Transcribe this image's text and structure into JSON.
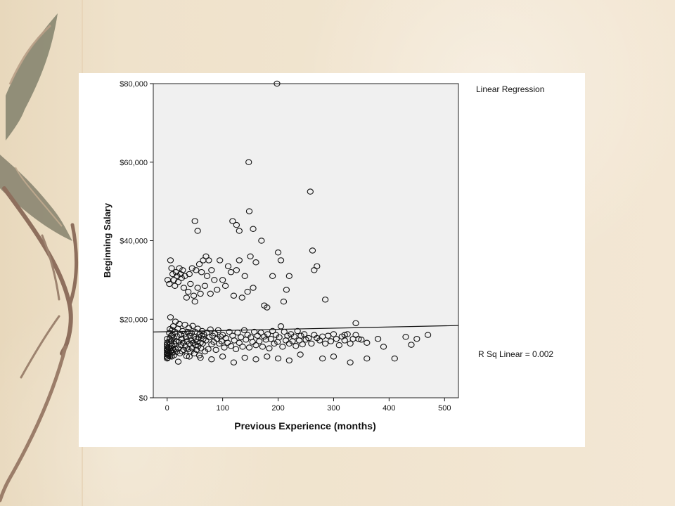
{
  "chart_data": {
    "type": "scatter",
    "title": "Linear Regression",
    "xlabel": "Previous Experience (months)",
    "ylabel": "Beginning Salary",
    "xlim": [
      -25,
      525
    ],
    "ylim": [
      0,
      80000
    ],
    "x_ticks": [
      0,
      100,
      200,
      300,
      400,
      500
    ],
    "y_ticks": [
      {
        "value": 0,
        "label": "$0"
      },
      {
        "value": 20000,
        "label": "$20,000"
      },
      {
        "value": 40000,
        "label": "$40,000"
      },
      {
        "value": 60000,
        "label": "$60,000"
      },
      {
        "value": 80000,
        "label": "$80,000"
      }
    ],
    "regression_line": {
      "label": "R Sq Linear = 0.002",
      "x": [
        -25,
        525
      ],
      "y": [
        16750,
        18400
      ]
    },
    "series": [
      {
        "points": [
          [
            0,
            10000
          ],
          [
            0,
            10500
          ],
          [
            0,
            11000
          ],
          [
            0,
            11500
          ],
          [
            0,
            12000
          ],
          [
            0,
            12500
          ],
          [
            0,
            13000
          ],
          [
            0,
            13500
          ],
          [
            0,
            14000
          ],
          [
            0,
            15000
          ],
          [
            1,
            10200
          ],
          [
            1,
            11200
          ],
          [
            1,
            12200
          ],
          [
            2,
            10800
          ],
          [
            2,
            11800
          ],
          [
            2,
            12800
          ],
          [
            3,
            11300
          ],
          [
            3,
            14300
          ],
          [
            4,
            12600
          ],
          [
            4,
            16500
          ],
          [
            5,
            10600
          ],
          [
            5,
            15000
          ],
          [
            5,
            17500
          ],
          [
            6,
            11800
          ],
          [
            6,
            13800
          ],
          [
            6,
            20500
          ],
          [
            7,
            12600
          ],
          [
            7,
            15800
          ],
          [
            8,
            10500
          ],
          [
            8,
            14600
          ],
          [
            9,
            13200
          ],
          [
            9,
            17200
          ],
          [
            10,
            11500
          ],
          [
            10,
            16000
          ],
          [
            11,
            12200
          ],
          [
            11,
            18200
          ],
          [
            12,
            10800
          ],
          [
            12,
            15300
          ],
          [
            13,
            13800
          ],
          [
            14,
            16800
          ],
          [
            15,
            12400
          ],
          [
            15,
            19400
          ],
          [
            16,
            14400
          ],
          [
            17,
            11700
          ],
          [
            18,
            15600
          ],
          [
            19,
            17600
          ],
          [
            20,
            12600
          ],
          [
            21,
            14200
          ],
          [
            22,
            18800
          ],
          [
            23,
            11300
          ],
          [
            24,
            16000
          ],
          [
            25,
            13400
          ],
          [
            26,
            15000
          ],
          [
            27,
            11800
          ],
          [
            28,
            17000
          ],
          [
            29,
            14000
          ],
          [
            30,
            12200
          ],
          [
            31,
            16200
          ],
          [
            32,
            18600
          ],
          [
            33,
            13200
          ],
          [
            34,
            15400
          ],
          [
            35,
            10600
          ],
          [
            36,
            14400
          ],
          [
            37,
            16800
          ],
          [
            38,
            12400
          ],
          [
            39,
            17800
          ],
          [
            40,
            13800
          ],
          [
            41,
            15800
          ],
          [
            42,
            11800
          ],
          [
            43,
            14600
          ],
          [
            44,
            16400
          ],
          [
            45,
            12600
          ],
          [
            46,
            18300
          ],
          [
            47,
            14000
          ],
          [
            48,
            15600
          ],
          [
            49,
            11300
          ],
          [
            50,
            16800
          ],
          [
            51,
            13400
          ],
          [
            52,
            15000
          ],
          [
            53,
            12200
          ],
          [
            54,
            14200
          ],
          [
            55,
            17600
          ],
          [
            56,
            13200
          ],
          [
            57,
            15400
          ],
          [
            58,
            10800
          ],
          [
            59,
            16200
          ],
          [
            60,
            14000
          ],
          [
            61,
            12600
          ],
          [
            62,
            15800
          ],
          [
            63,
            17000
          ],
          [
            64,
            13800
          ],
          [
            65,
            15000
          ],
          [
            66,
            16200
          ],
          [
            68,
            11800
          ],
          [
            70,
            14600
          ],
          [
            72,
            16600
          ],
          [
            74,
            12400
          ],
          [
            76,
            15400
          ],
          [
            78,
            17400
          ],
          [
            80,
            13600
          ],
          [
            82,
            15800
          ],
          [
            84,
            14200
          ],
          [
            86,
            16400
          ],
          [
            88,
            12200
          ],
          [
            90,
            15000
          ],
          [
            92,
            17200
          ],
          [
            94,
            13800
          ],
          [
            96,
            15600
          ],
          [
            98,
            14400
          ],
          [
            100,
            16000
          ],
          [
            103,
            12800
          ],
          [
            106,
            15200
          ],
          [
            109,
            14000
          ],
          [
            112,
            16800
          ],
          [
            115,
            13200
          ],
          [
            118,
            15800
          ],
          [
            121,
            14600
          ],
          [
            124,
            12400
          ],
          [
            127,
            16600
          ],
          [
            130,
            14000
          ],
          [
            133,
            15400
          ],
          [
            136,
            13000
          ],
          [
            139,
            17200
          ],
          [
            142,
            14800
          ],
          [
            145,
            16000
          ],
          [
            148,
            12800
          ],
          [
            151,
            15400
          ],
          [
            154,
            14200
          ],
          [
            157,
            16800
          ],
          [
            160,
            13400
          ],
          [
            163,
            15800
          ],
          [
            166,
            14400
          ],
          [
            169,
            16600
          ],
          [
            172,
            13000
          ],
          [
            175,
            15600
          ],
          [
            178,
            14800
          ],
          [
            181,
            16200
          ],
          [
            184,
            12600
          ],
          [
            187,
            15000
          ],
          [
            190,
            17000
          ],
          [
            193,
            13800
          ],
          [
            196,
            16000
          ],
          [
            199,
            14200
          ],
          [
            202,
            15400
          ],
          [
            205,
            18200
          ],
          [
            208,
            13000
          ],
          [
            211,
            16800
          ],
          [
            214,
            14600
          ],
          [
            217,
            15800
          ],
          [
            220,
            13800
          ],
          [
            223,
            16200
          ],
          [
            226,
            14400
          ],
          [
            229,
            15600
          ],
          [
            232,
            13200
          ],
          [
            235,
            17000
          ],
          [
            238,
            14600
          ],
          [
            241,
            15800
          ],
          [
            244,
            13600
          ],
          [
            247,
            16200
          ],
          [
            250,
            14800
          ],
          [
            255,
            15200
          ],
          [
            260,
            13800
          ],
          [
            265,
            16000
          ],
          [
            270,
            15200
          ],
          [
            275,
            14600
          ],
          [
            280,
            15600
          ],
          [
            285,
            13800
          ],
          [
            290,
            15800
          ],
          [
            295,
            14400
          ],
          [
            300,
            16200
          ],
          [
            305,
            15000
          ],
          [
            310,
            13400
          ],
          [
            315,
            15600
          ],
          [
            320,
            14600
          ],
          [
            325,
            16200
          ],
          [
            330,
            13800
          ],
          [
            335,
            15000
          ],
          [
            340,
            16000
          ],
          [
            345,
            15000
          ],
          [
            350,
            14800
          ],
          [
            1,
            30000
          ],
          [
            4,
            29000
          ],
          [
            6,
            35000
          ],
          [
            8,
            33000
          ],
          [
            10,
            31500
          ],
          [
            12,
            30000
          ],
          [
            14,
            28500
          ],
          [
            16,
            32000
          ],
          [
            18,
            31000
          ],
          [
            20,
            29500
          ],
          [
            22,
            33000
          ],
          [
            24,
            31500
          ],
          [
            26,
            30500
          ],
          [
            28,
            32500
          ],
          [
            30,
            28000
          ],
          [
            32,
            31000
          ],
          [
            35,
            25500
          ],
          [
            38,
            27000
          ],
          [
            40,
            31500
          ],
          [
            42,
            29000
          ],
          [
            45,
            33000
          ],
          [
            48,
            26000
          ],
          [
            50,
            24500
          ],
          [
            52,
            32500
          ],
          [
            55,
            28000
          ],
          [
            58,
            34000
          ],
          [
            60,
            26500
          ],
          [
            62,
            32000
          ],
          [
            65,
            35000
          ],
          [
            68,
            28500
          ],
          [
            70,
            36000
          ],
          [
            72,
            31000
          ],
          [
            75,
            35000
          ],
          [
            78,
            26500
          ],
          [
            80,
            32500
          ],
          [
            85,
            30000
          ],
          [
            90,
            27500
          ],
          [
            95,
            35000
          ],
          [
            100,
            30000
          ],
          [
            105,
            28500
          ],
          [
            110,
            33500
          ],
          [
            115,
            32000
          ],
          [
            120,
            26000
          ],
          [
            125,
            32500
          ],
          [
            130,
            35000
          ],
          [
            135,
            25500
          ],
          [
            140,
            31000
          ],
          [
            145,
            27000
          ],
          [
            150,
            36000
          ],
          [
            155,
            28000
          ],
          [
            160,
            34500
          ],
          [
            170,
            40000
          ],
          [
            175,
            23500
          ],
          [
            180,
            23000
          ],
          [
            190,
            31000
          ],
          [
            200,
            37000
          ],
          [
            205,
            35000
          ],
          [
            210,
            24500
          ],
          [
            215,
            27500
          ],
          [
            220,
            31000
          ],
          [
            50,
            45000
          ],
          [
            55,
            42500
          ],
          [
            118,
            45000
          ],
          [
            125,
            44000
          ],
          [
            130,
            42500
          ],
          [
            148,
            47500
          ],
          [
            155,
            43000
          ],
          [
            198,
            80000
          ],
          [
            147,
            60000
          ],
          [
            258,
            52500
          ],
          [
            262,
            37500
          ],
          [
            265,
            32500
          ],
          [
            270,
            33500
          ],
          [
            285,
            25000
          ],
          [
            340,
            19000
          ],
          [
            320,
            16000
          ],
          [
            360,
            14000
          ],
          [
            380,
            15000
          ],
          [
            390,
            13000
          ],
          [
            410,
            10000
          ],
          [
            430,
            15500
          ],
          [
            440,
            13500
          ],
          [
            450,
            15000
          ],
          [
            470,
            16000
          ],
          [
            360,
            10000
          ],
          [
            330,
            9000
          ],
          [
            300,
            10500
          ],
          [
            280,
            10000
          ],
          [
            240,
            11000
          ],
          [
            220,
            9500
          ],
          [
            200,
            10000
          ],
          [
            180,
            10500
          ],
          [
            160,
            9800
          ],
          [
            140,
            10200
          ],
          [
            120,
            9000
          ],
          [
            100,
            10500
          ],
          [
            80,
            9800
          ],
          [
            60,
            10200
          ],
          [
            40,
            10500
          ],
          [
            20,
            9200
          ]
        ]
      }
    ]
  }
}
